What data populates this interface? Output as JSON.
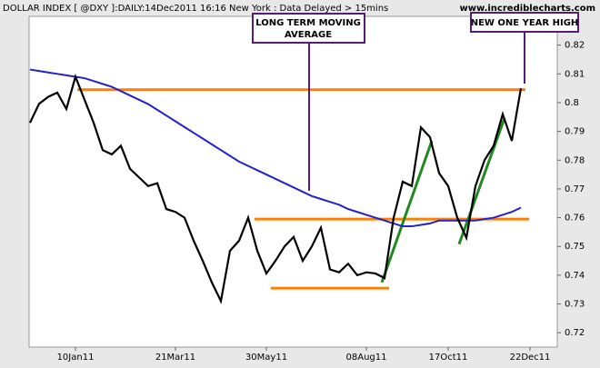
{
  "chart_data": {
    "type": "line",
    "title": "DOLLAR INDEX [ @DXY ]:DAILY:14Dec2011 16:16 New York : Data Delayed > 15mins",
    "source": "www.incrediblecharts.com",
    "categories": [
      null,
      null,
      null,
      null,
      null,
      "10Jan11",
      null,
      null,
      null,
      null,
      null,
      null,
      null,
      null,
      null,
      null,
      "21Mar11",
      null,
      null,
      null,
      null,
      null,
      null,
      null,
      null,
      null,
      "30May11",
      null,
      null,
      null,
      null,
      null,
      null,
      null,
      null,
      null,
      null,
      "08Aug11",
      null,
      null,
      null,
      null,
      null,
      null,
      null,
      null,
      "17Oct11",
      null,
      null,
      null,
      null,
      null,
      null,
      null,
      null,
      "22Dec11"
    ],
    "series": [
      {
        "name": "DXY",
        "color": "#000000",
        "values": [
          0.793,
          0.7996,
          0.802,
          0.8035,
          0.7978,
          0.809,
          0.801,
          0.793,
          0.7835,
          0.782,
          0.785,
          0.777,
          0.774,
          0.771,
          0.772,
          0.763,
          0.762,
          0.76,
          0.752,
          0.745,
          0.7375,
          0.731,
          0.7485,
          0.752,
          0.76,
          0.7485,
          0.7406,
          0.745,
          0.75,
          0.7533,
          0.745,
          0.75,
          0.7565,
          0.742,
          0.741,
          0.744,
          0.74,
          0.741,
          0.7406,
          0.739,
          0.76,
          0.7725,
          0.771,
          0.7914,
          0.788,
          0.7755,
          0.771,
          0.76,
          0.753,
          0.771,
          0.78,
          0.785,
          0.796,
          0.7867,
          0.805,
          null
        ]
      },
      {
        "name": "Moving Average",
        "color": "#2222cc",
        "values": [
          0.8115,
          0.811,
          0.8105,
          0.81,
          0.8095,
          0.809,
          0.8085,
          0.8075,
          0.8065,
          0.8055,
          0.804,
          0.8025,
          0.801,
          0.7995,
          0.7975,
          0.7955,
          0.7935,
          0.7915,
          0.7895,
          0.7875,
          0.7855,
          0.7835,
          0.7815,
          0.7795,
          0.778,
          0.7765,
          0.775,
          0.7735,
          0.772,
          0.7705,
          0.769,
          0.7675,
          0.7665,
          0.7655,
          0.7645,
          0.763,
          0.762,
          0.761,
          0.76,
          0.759,
          0.758,
          0.757,
          0.757,
          0.7575,
          0.758,
          0.759,
          0.759,
          0.759,
          0.759,
          0.759,
          0.7595,
          0.76,
          0.761,
          0.762,
          0.7635,
          null
        ]
      }
    ],
    "trend_lines": [
      {
        "color": "#ff8000",
        "x": [
          5.2,
          54.5
        ],
        "values": [
          0.8045,
          0.8045
        ]
      },
      {
        "color": "#ff8000",
        "x": [
          24.7,
          54.9
        ],
        "values": [
          0.7595,
          0.7595
        ]
      },
      {
        "color": "#ff8000",
        "x": [
          26.5,
          39.5
        ],
        "values": [
          0.7355,
          0.7355
        ]
      },
      {
        "color": "#228822",
        "x": [
          38.7,
          44.2
        ],
        "values": [
          0.7375,
          0.7867
        ]
      },
      {
        "color": "#228822",
        "x": [
          47.2,
          52.2
        ],
        "values": [
          0.7508,
          0.7946
        ]
      }
    ],
    "annotations": [
      "LONG TERM MOVING AVERAGE",
      "NEW ONE YEAR HIGH"
    ],
    "ylim": [
      0.715,
      0.83
    ],
    "yticks": [
      0.72,
      0.73,
      0.74,
      0.75,
      0.76,
      0.77,
      0.78,
      0.79,
      0.8,
      0.81,
      0.82
    ]
  }
}
